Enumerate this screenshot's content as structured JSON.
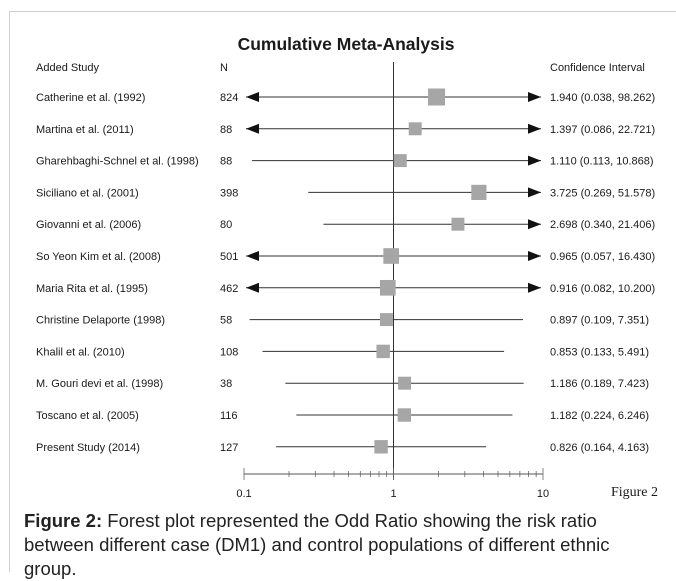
{
  "chart_data": {
    "type": "forest",
    "title": "Cumulative Meta-Analysis",
    "col_study_header": "Added Study",
    "col_n_header": "N",
    "col_ci_header": "Confidence Interval",
    "x_scale": "log",
    "xlim": [
      0.1,
      10
    ],
    "x_ticks": [
      "0.1",
      "1",
      "10"
    ],
    "reference_line": 1,
    "figure_label": "Figure 2",
    "studies": [
      {
        "name": "Catherine et al.  (1992)",
        "n": "824",
        "or": 1.94,
        "lo": 0.038,
        "hi": 98.262,
        "ci": "1.940 (0.038, 98.262)",
        "weight": 1.0
      },
      {
        "name": "Martina et al. (2011)",
        "n": "88",
        "or": 1.397,
        "lo": 0.086,
        "hi": 22.721,
        "ci": "1.397 (0.086, 22.721)",
        "weight": 0.55
      },
      {
        "name": "Gharehbaghi-Schnel et al. (1998)",
        "n": "88",
        "or": 1.11,
        "lo": 0.113,
        "hi": 10.868,
        "ci": "1.110 (0.113, 10.868)",
        "weight": 0.55
      },
      {
        "name": "Siciliano et al. (2001)",
        "n": "398",
        "or": 3.725,
        "lo": 0.269,
        "hi": 51.578,
        "ci": "3.725 (0.269, 51.578)",
        "weight": 0.8
      },
      {
        "name": "Giovanni et al. (2006)",
        "n": "80",
        "or": 2.698,
        "lo": 0.34,
        "hi": 21.406,
        "ci": "2.698 (0.340, 21.406)",
        "weight": 0.55
      },
      {
        "name": "So Yeon Kim et al. (2008)",
        "n": "501",
        "or": 0.965,
        "lo": 0.057,
        "hi": 16.43,
        "ci": "0.965 (0.057, 16.430)",
        "weight": 0.85
      },
      {
        "name": "Maria Rita et al. (1995)",
        "n": "462",
        "or": 0.916,
        "lo": 0.082,
        "hi": 10.2,
        "ci": "0.916 (0.082, 10.200)",
        "weight": 0.85
      },
      {
        "name": "Christine Delaporte (1998)",
        "n": "58",
        "or": 0.897,
        "lo": 0.109,
        "hi": 7.351,
        "ci": "0.897 (0.109, 7.351)",
        "weight": 0.55
      },
      {
        "name": "Khalil et al. (2010)",
        "n": "108",
        "or": 0.853,
        "lo": 0.133,
        "hi": 5.491,
        "ci": "0.853 (0.133, 5.491)",
        "weight": 0.6
      },
      {
        "name": "M. Gouri devi et al. (1998)",
        "n": "38",
        "or": 1.186,
        "lo": 0.189,
        "hi": 7.423,
        "ci": "1.186 (0.189, 7.423)",
        "weight": 0.55
      },
      {
        "name": "Toscano et al. (2005)",
        "n": "116",
        "or": 1.182,
        "lo": 0.224,
        "hi": 6.246,
        "ci": "1.182 (0.224, 6.246)",
        "weight": 0.6
      },
      {
        "name": "Present Study (2014)",
        "n": "127",
        "or": 0.826,
        "lo": 0.164,
        "hi": 4.163,
        "ci": "0.826 (0.164, 4.163)",
        "weight": 0.6
      }
    ]
  },
  "caption": {
    "label": "Figure 2:",
    "text": " Forest plot represented the Odd Ratio showing the risk ratio between different case (DM1) and control populations of different ethnic group."
  },
  "colors": {
    "marker": "#a6a6a6",
    "line": "#333333",
    "text": "#1a1a1a"
  }
}
